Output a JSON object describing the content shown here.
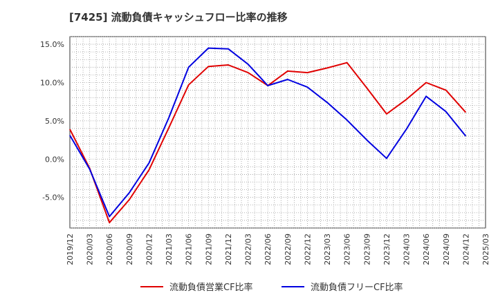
{
  "chart_data": {
    "type": "line",
    "title": "[7425]  流動負債キャッシュフロー比率の推移",
    "xlabel": "",
    "ylabel": "",
    "x": [
      "2019/12",
      "2020/03",
      "2020/06",
      "2020/09",
      "2020/12",
      "2021/03",
      "2021/06",
      "2021/09",
      "2021/12",
      "2022/03",
      "2022/06",
      "2022/09",
      "2022/12",
      "2023/03",
      "2023/06",
      "2023/09",
      "2023/12",
      "2024/03",
      "2024/06",
      "2024/09",
      "2024/12",
      "2025/03"
    ],
    "ylim": [
      -9.0,
      16.0
    ],
    "yticks": [
      15.0,
      10.0,
      5.0,
      0.0,
      -5.0
    ],
    "ytick_labels": [
      "15.0%",
      "10.0%",
      "5.0%",
      "0.0%",
      "-5.0%"
    ],
    "grid": true,
    "legend_position": "bottom",
    "series": [
      {
        "name": "流動負債営業CF比率",
        "color": "#e00000",
        "values": [
          3.9,
          -1.2,
          -8.3,
          -5.3,
          -1.4,
          4.1,
          9.7,
          12.1,
          12.3,
          11.3,
          9.6,
          11.5,
          11.3,
          11.9,
          12.6,
          9.3,
          5.9,
          7.8,
          10.0,
          9.0,
          6.1,
          null
        ]
      },
      {
        "name": "流動負債フリーCF比率",
        "color": "#0000e0",
        "values": [
          3.1,
          -1.3,
          -7.5,
          -4.4,
          -0.5,
          5.4,
          12.0,
          14.5,
          14.4,
          12.4,
          9.6,
          10.4,
          9.4,
          7.4,
          5.1,
          2.5,
          0.1,
          3.9,
          8.2,
          6.2,
          3.0,
          null
        ]
      }
    ]
  }
}
